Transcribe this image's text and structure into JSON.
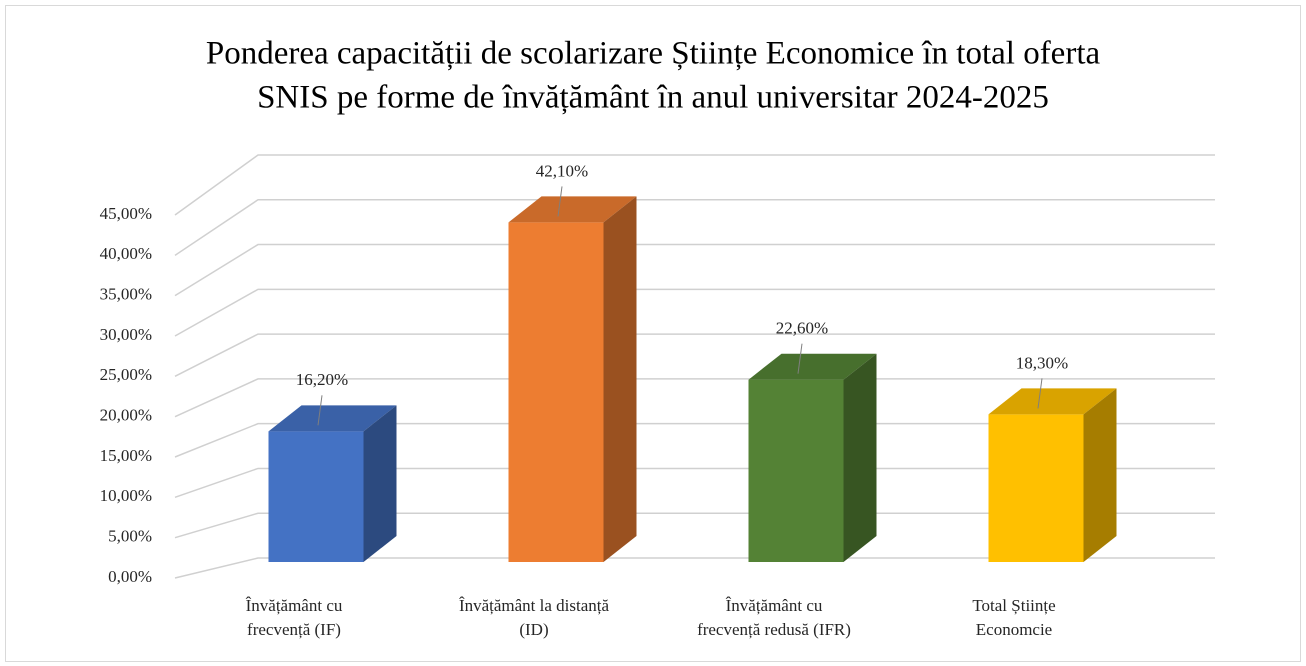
{
  "chart_data": {
    "type": "bar3d",
    "title": [
      "Ponderea capacității de scolarizare Științe Economice în total oferta",
      "SNIS pe forme de învățământ în anul universitar 2024-2025"
    ],
    "categories": [
      [
        "Învățământ cu",
        "frecvență (IF)"
      ],
      [
        "Învățământ la distanță",
        "(ID)"
      ],
      [
        "Învățământ cu",
        "frecvență redusă (IFR)"
      ],
      [
        "Total Științe",
        "Economcie"
      ]
    ],
    "values": [
      16.2,
      42.1,
      22.6,
      18.3
    ],
    "value_labels": [
      "16,20%",
      "42,10%",
      "22,60%",
      "18,30%"
    ],
    "colors": [
      "#4472c4",
      "#ed7d31",
      "#548235",
      "#ffc000"
    ],
    "ylim": [
      0,
      45
    ],
    "yticks": [
      {
        "value": 0,
        "label": "0,00%"
      },
      {
        "value": 5,
        "label": "5,00%"
      },
      {
        "value": 10,
        "label": "10,00%"
      },
      {
        "value": 15,
        "label": "15,00%"
      },
      {
        "value": 20,
        "label": "20,00%"
      },
      {
        "value": 25,
        "label": "25,00%"
      },
      {
        "value": 30,
        "label": "30,00%"
      },
      {
        "value": 35,
        "label": "35,00%"
      },
      {
        "value": 40,
        "label": "40,00%"
      },
      {
        "value": 45,
        "label": "45,00%"
      }
    ],
    "grid": true
  }
}
